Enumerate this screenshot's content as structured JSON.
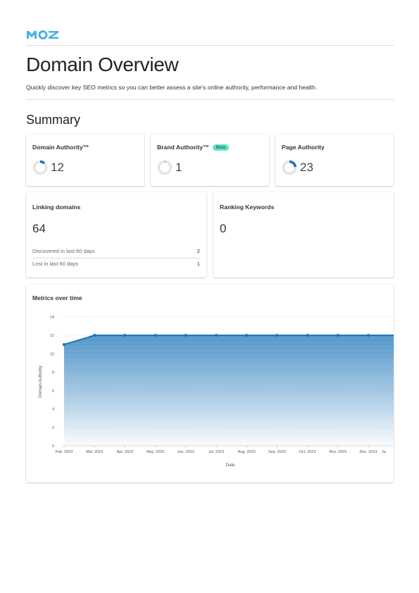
{
  "brand": {
    "logo_text": "MOZ",
    "color": "#4ab3e0"
  },
  "header": {
    "title": "Domain Overview",
    "subtitle": "Quickly discover key SEO metrics so you can better assess a site's online authority, performance and health."
  },
  "summary": {
    "heading": "Summary",
    "domain_authority": {
      "label": "Domain Authority™",
      "value": "12",
      "fraction": 0.12
    },
    "brand_authority": {
      "label": "Brand Authority™",
      "badge": "Beta",
      "value": "1",
      "fraction": 0.01
    },
    "page_authority": {
      "label": "Page Authority",
      "value": "23",
      "fraction": 0.23
    },
    "linking_domains": {
      "label": "Linking domains",
      "value": "64",
      "discovered_label": "Discovered in last 60 days",
      "discovered_value": "2",
      "lost_label": "Lost in last 60 days",
      "lost_value": "1"
    },
    "ranking_keywords": {
      "label": "Ranking Keywords",
      "value": "0"
    }
  },
  "metrics": {
    "title": "Metrics over time",
    "accent_color": "#1a73b8"
  },
  "chart_data": {
    "type": "area",
    "title": "Metrics over time",
    "xlabel": "Date",
    "ylabel": "Domain Authority",
    "x": [
      "Feb. 2023",
      "Mar. 2023",
      "Apr. 2023",
      "May. 2023",
      "Jun. 2023",
      "Jul. 2023",
      "Aug. 2023",
      "Sep. 2023",
      "Oct. 2023",
      "Nov. 2023",
      "Dec. 2023",
      "Ja"
    ],
    "series": [
      {
        "values": [
          11,
          12,
          12,
          12,
          12,
          12,
          12,
          12,
          12,
          12,
          12,
          12
        ]
      }
    ],
    "yticks": [
      "0",
      "2",
      "4",
      "6",
      "8",
      "10",
      "12",
      "14"
    ],
    "ylim": [
      0,
      14
    ],
    "grid": true
  }
}
